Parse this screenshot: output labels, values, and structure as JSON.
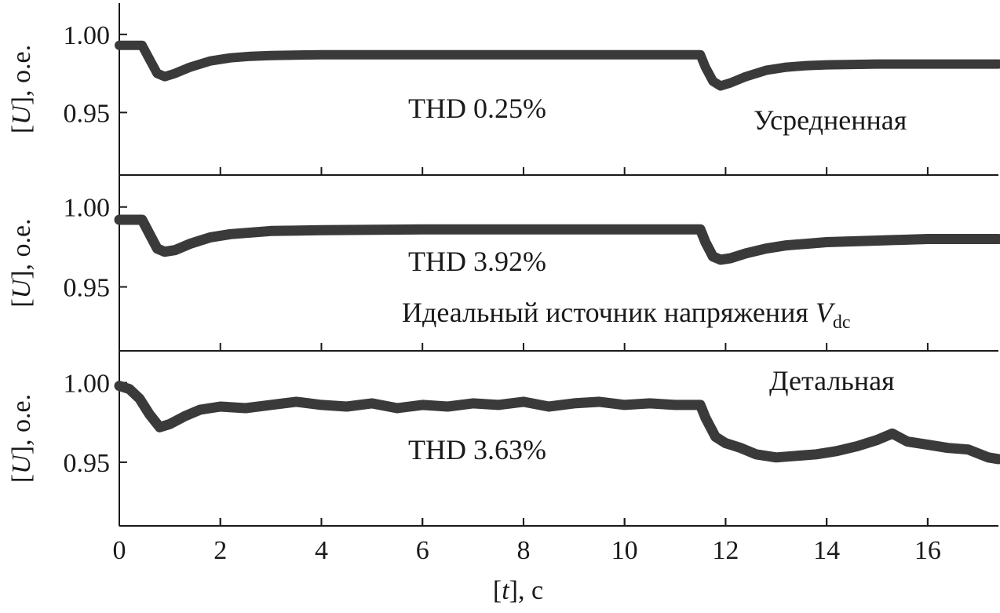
{
  "chart_data": [
    {
      "type": "line",
      "name": "panel-1",
      "ylabel": "[U], o.e.",
      "ylim": [
        0.91,
        1.02
      ],
      "yticks": [
        0.95,
        1.0
      ],
      "ytick_labels": [
        "0.95",
        "1.00"
      ],
      "xlim": [
        0,
        17.4
      ],
      "annotations": {
        "thd": "THD 0.25%",
        "label": "Усредненная"
      },
      "series": [
        {
          "name": "Усредненная",
          "color": "#3a3a3a",
          "x": [
            0,
            0.45,
            0.6,
            0.75,
            0.9,
            1.1,
            1.4,
            1.8,
            2.2,
            2.6,
            3.0,
            4.0,
            6.0,
            8.0,
            10.0,
            11.5,
            11.6,
            11.75,
            11.9,
            12.1,
            12.4,
            12.8,
            13.2,
            13.6,
            14.0,
            15.0,
            16.0,
            17.4
          ],
          "y": [
            0.993,
            0.993,
            0.984,
            0.975,
            0.973,
            0.975,
            0.979,
            0.983,
            0.985,
            0.986,
            0.9865,
            0.987,
            0.987,
            0.987,
            0.987,
            0.987,
            0.979,
            0.97,
            0.967,
            0.969,
            0.973,
            0.977,
            0.979,
            0.98,
            0.9805,
            0.981,
            0.981,
            0.981
          ]
        }
      ]
    },
    {
      "type": "line",
      "name": "panel-2",
      "ylabel": "[U], o.e.",
      "ylim": [
        0.91,
        1.02
      ],
      "yticks": [
        0.95,
        1.0
      ],
      "ytick_labels": [
        "0.95",
        "1.00"
      ],
      "xlim": [
        0,
        17.4
      ],
      "annotations": {
        "thd": "THD 3.92%",
        "label_main": "Идеальный источник напряжения ",
        "label_var": "V",
        "label_sub": "dc"
      },
      "series": [
        {
          "name": "Идеальный источник напряжения Vdc",
          "color": "#3a3a3a",
          "x": [
            0,
            0.45,
            0.6,
            0.75,
            0.9,
            1.1,
            1.4,
            1.8,
            2.2,
            2.6,
            3.0,
            4.0,
            6.0,
            8.0,
            10.0,
            11.5,
            11.6,
            11.75,
            11.9,
            12.1,
            12.4,
            12.8,
            13.2,
            13.6,
            14.0,
            15.0,
            16.0,
            17.4
          ],
          "y": [
            0.992,
            0.992,
            0.983,
            0.974,
            0.972,
            0.973,
            0.977,
            0.981,
            0.983,
            0.984,
            0.985,
            0.9855,
            0.986,
            0.986,
            0.986,
            0.986,
            0.978,
            0.969,
            0.967,
            0.968,
            0.971,
            0.974,
            0.976,
            0.977,
            0.978,
            0.979,
            0.98,
            0.98
          ]
        }
      ]
    },
    {
      "type": "line",
      "name": "panel-3",
      "ylabel": "[U], o.e.",
      "ylim": [
        0.91,
        1.02
      ],
      "yticks": [
        0.95,
        1.0
      ],
      "ytick_labels": [
        "0.95",
        "1.00"
      ],
      "xlim": [
        0,
        17.4
      ],
      "xticks": [
        0,
        2,
        4,
        6,
        8,
        10,
        12,
        14,
        16
      ],
      "xtick_labels": [
        "0",
        "2",
        "4",
        "6",
        "8",
        "10",
        "12",
        "14",
        "16"
      ],
      "xlabel_open": "[",
      "xlabel_var": "t",
      "xlabel_close": "], с",
      "annotations": {
        "thd": "THD 3.63%",
        "label": "Детальная"
      },
      "series": [
        {
          "name": "Детальная",
          "color": "#3a3a3a",
          "x": [
            0,
            0.2,
            0.4,
            0.6,
            0.8,
            1.0,
            1.3,
            1.6,
            2.0,
            2.5,
            3.0,
            3.5,
            4.0,
            4.5,
            5.0,
            5.5,
            6.0,
            6.5,
            7.0,
            7.5,
            8.0,
            8.5,
            9.0,
            9.5,
            10.0,
            10.5,
            11.0,
            11.5,
            11.6,
            11.8,
            12.0,
            12.3,
            12.6,
            13.0,
            13.4,
            13.8,
            14.2,
            14.6,
            15.0,
            15.3,
            15.6,
            16.0,
            16.4,
            16.8,
            17.2,
            17.4
          ],
          "y": [
            0.998,
            0.996,
            0.99,
            0.98,
            0.972,
            0.974,
            0.979,
            0.983,
            0.985,
            0.984,
            0.986,
            0.988,
            0.986,
            0.985,
            0.987,
            0.984,
            0.986,
            0.985,
            0.987,
            0.986,
            0.988,
            0.985,
            0.987,
            0.988,
            0.986,
            0.987,
            0.986,
            0.986,
            0.978,
            0.966,
            0.962,
            0.959,
            0.955,
            0.953,
            0.954,
            0.955,
            0.957,
            0.96,
            0.964,
            0.968,
            0.963,
            0.961,
            0.959,
            0.958,
            0.953,
            0.952
          ]
        }
      ]
    }
  ]
}
